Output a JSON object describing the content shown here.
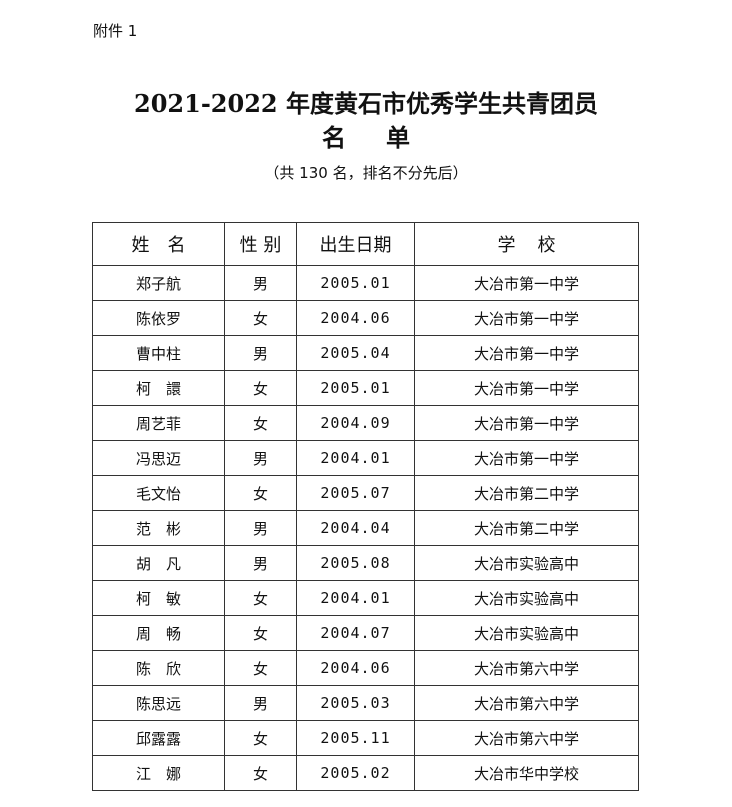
{
  "attachment_label": "附件 1",
  "title": "2021-2022 年度黄石市优秀学生共青团员",
  "title_line2": "名单",
  "subtitle": "（共 130 名，排名不分先后）",
  "table": {
    "headers": [
      "姓名",
      "性 别",
      "出生日期",
      "学校"
    ],
    "rows": [
      [
        "郑子航",
        "男",
        "2005.01",
        "大冶市第一中学"
      ],
      [
        "陈依罗",
        "女",
        "2004.06",
        "大冶市第一中学"
      ],
      [
        "曹中柱",
        "男",
        "2005.04",
        "大冶市第一中学"
      ],
      [
        "柯　譞",
        "女",
        "2005.01",
        "大冶市第一中学"
      ],
      [
        "周艺菲",
        "女",
        "2004.09",
        "大冶市第一中学"
      ],
      [
        "冯思迈",
        "男",
        "2004.01",
        "大冶市第一中学"
      ],
      [
        "毛文怡",
        "女",
        "2005.07",
        "大冶市第二中学"
      ],
      [
        "范　彬",
        "男",
        "2004.04",
        "大冶市第二中学"
      ],
      [
        "胡　凡",
        "男",
        "2005.08",
        "大冶市实验高中"
      ],
      [
        "柯　敏",
        "女",
        "2004.01",
        "大冶市实验高中"
      ],
      [
        "周　畅",
        "女",
        "2004.07",
        "大冶市实验高中"
      ],
      [
        "陈　欣",
        "女",
        "2004.06",
        "大冶市第六中学"
      ],
      [
        "陈思远",
        "男",
        "2005.03",
        "大冶市第六中学"
      ],
      [
        "邱露露",
        "女",
        "2005.11",
        "大冶市第六中学"
      ],
      [
        "江　娜",
        "女",
        "2005.02",
        "大冶市华中学校"
      ]
    ]
  }
}
